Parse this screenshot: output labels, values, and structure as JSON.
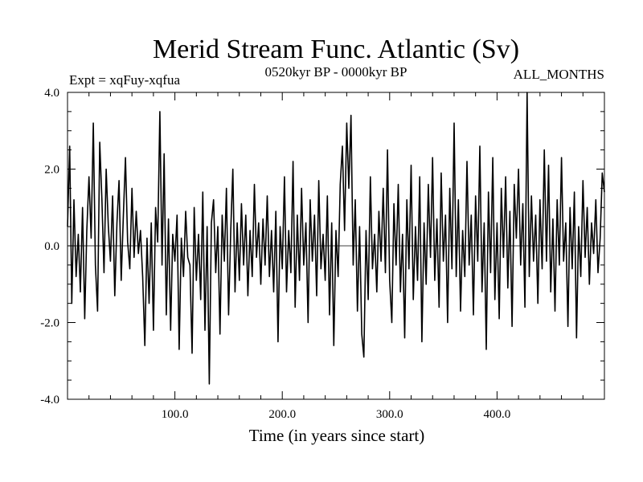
{
  "chart_data": {
    "type": "line",
    "title": "Merid Stream Func. Atlantic (Sv)",
    "subtitle_left": "Expt = xqFuy-xqfua",
    "subtitle_center": "0520kyr BP - 0000kyr BP",
    "subtitle_right": "ALL_MONTHS",
    "xlabel": "Time (in years since start)",
    "ylabel": "",
    "xlim": [
      0,
      500
    ],
    "ylim": [
      -4,
      4
    ],
    "xticks": [
      100,
      200,
      300,
      400
    ],
    "xtick_labels": [
      "100.0",
      "200.0",
      "300.0",
      "400.0"
    ],
    "yticks": [
      4,
      2,
      0,
      -2,
      -4
    ],
    "ytick_labels": [
      "4.0",
      "2.0",
      "0.0",
      "-2.0",
      "-4.0"
    ],
    "zero_line": true,
    "line_color": "#000000",
    "series": [
      {
        "name": "Merid Stream Func. Atlantic",
        "knots": [
          [
            0,
            0.5
          ],
          [
            2,
            2.6
          ],
          [
            4,
            -1.5
          ],
          [
            6,
            1.2
          ],
          [
            8,
            -0.8
          ],
          [
            10,
            0.3
          ],
          [
            12,
            -1.2
          ],
          [
            14,
            1.0
          ],
          [
            16,
            -1.9
          ],
          [
            18,
            0.4
          ],
          [
            20,
            1.8
          ],
          [
            22,
            0.2
          ],
          [
            24,
            3.2
          ],
          [
            26,
            -0.5
          ],
          [
            28,
            -1.7
          ],
          [
            30,
            2.7
          ],
          [
            32,
            1.2
          ],
          [
            34,
            -0.7
          ],
          [
            36,
            2.0
          ],
          [
            38,
            0.5
          ],
          [
            40,
            -0.4
          ],
          [
            42,
            1.3
          ],
          [
            44,
            -1.3
          ],
          [
            46,
            0.6
          ],
          [
            48,
            1.7
          ],
          [
            50,
            -0.9
          ],
          [
            52,
            0.8
          ],
          [
            54,
            2.3
          ],
          [
            56,
            0.1
          ],
          [
            58,
            -0.6
          ],
          [
            60,
            1.5
          ],
          [
            62,
            -0.3
          ],
          [
            64,
            0.9
          ],
          [
            66,
            -0.2
          ],
          [
            68,
            0.4
          ],
          [
            70,
            -0.8
          ],
          [
            72,
            -2.6
          ],
          [
            74,
            0.2
          ],
          [
            76,
            -1.5
          ],
          [
            78,
            0.6
          ],
          [
            80,
            -2.2
          ],
          [
            82,
            1.0
          ],
          [
            84,
            0.1
          ],
          [
            86,
            3.5
          ],
          [
            88,
            -0.5
          ],
          [
            90,
            2.4
          ],
          [
            92,
            -1.8
          ],
          [
            94,
            0.7
          ],
          [
            96,
            -2.2
          ],
          [
            98,
            0.3
          ],
          [
            100,
            -0.4
          ],
          [
            102,
            0.8
          ],
          [
            104,
            -2.7
          ],
          [
            106,
            0.2
          ],
          [
            108,
            -0.8
          ],
          [
            110,
            0.9
          ],
          [
            112,
            -0.3
          ],
          [
            114,
            -0.5
          ],
          [
            116,
            -2.8
          ],
          [
            118,
            1.0
          ],
          [
            120,
            -0.9
          ],
          [
            122,
            0.3
          ],
          [
            124,
            -1.4
          ],
          [
            126,
            1.4
          ],
          [
            128,
            -2.2
          ],
          [
            130,
            0.5
          ],
          [
            132,
            -3.6
          ],
          [
            134,
            0.6
          ],
          [
            136,
            1.2
          ],
          [
            138,
            -0.7
          ],
          [
            140,
            0.5
          ],
          [
            142,
            -2.3
          ],
          [
            144,
            0.8
          ],
          [
            146,
            -0.4
          ],
          [
            148,
            1.5
          ],
          [
            150,
            -1.8
          ],
          [
            152,
            0.4
          ],
          [
            154,
            2.0
          ],
          [
            156,
            -1.2
          ],
          [
            158,
            0.6
          ],
          [
            160,
            -0.9
          ],
          [
            162,
            1.1
          ],
          [
            164,
            -0.5
          ],
          [
            166,
            0.8
          ],
          [
            168,
            -1.3
          ],
          [
            170,
            0.4
          ],
          [
            172,
            -0.8
          ],
          [
            174,
            1.6
          ],
          [
            176,
            -0.3
          ],
          [
            178,
            0.6
          ],
          [
            180,
            -1.0
          ],
          [
            182,
            0.7
          ],
          [
            184,
            -0.5
          ],
          [
            186,
            1.3
          ],
          [
            188,
            -0.8
          ],
          [
            190,
            0.4
          ],
          [
            192,
            -1.2
          ],
          [
            194,
            0.9
          ],
          [
            196,
            -2.5
          ],
          [
            198,
            0.5
          ],
          [
            200,
            -0.6
          ],
          [
            202,
            1.8
          ],
          [
            204,
            -1.2
          ],
          [
            206,
            0.4
          ],
          [
            208,
            -0.7
          ],
          [
            210,
            2.2
          ],
          [
            212,
            -1.6
          ],
          [
            214,
            0.8
          ],
          [
            216,
            -0.9
          ],
          [
            218,
            1.5
          ],
          [
            220,
            -0.5
          ],
          [
            222,
            0.6
          ],
          [
            224,
            -2.0
          ],
          [
            226,
            1.2
          ],
          [
            228,
            -0.4
          ],
          [
            230,
            0.8
          ],
          [
            232,
            -1.3
          ],
          [
            234,
            1.7
          ],
          [
            236,
            -0.6
          ],
          [
            238,
            0.3
          ],
          [
            240,
            -0.9
          ],
          [
            242,
            1.3
          ],
          [
            244,
            -1.8
          ],
          [
            246,
            0.6
          ],
          [
            248,
            -2.6
          ],
          [
            250,
            0.4
          ],
          [
            252,
            -0.8
          ],
          [
            254,
            1.6
          ],
          [
            256,
            2.6
          ],
          [
            258,
            0.4
          ],
          [
            260,
            3.2
          ],
          [
            262,
            1.5
          ],
          [
            264,
            3.4
          ],
          [
            266,
            -0.5
          ],
          [
            268,
            1.2
          ],
          [
            270,
            -1.7
          ],
          [
            272,
            0.5
          ],
          [
            274,
            -2.3
          ],
          [
            276,
            -2.9
          ],
          [
            278,
            0.4
          ],
          [
            280,
            -1.4
          ],
          [
            282,
            1.8
          ],
          [
            284,
            -0.6
          ],
          [
            286,
            0.3
          ],
          [
            288,
            -1.2
          ],
          [
            290,
            0.9
          ],
          [
            292,
            -0.4
          ],
          [
            294,
            1.5
          ],
          [
            296,
            -0.7
          ],
          [
            298,
            2.5
          ],
          [
            300,
            -0.9
          ],
          [
            302,
            -2.0
          ],
          [
            304,
            1.1
          ],
          [
            306,
            -0.5
          ],
          [
            308,
            1.6
          ],
          [
            310,
            -1.2
          ],
          [
            312,
            0.3
          ],
          [
            314,
            -2.4
          ],
          [
            316,
            1.2
          ],
          [
            318,
            -0.6
          ],
          [
            320,
            2.1
          ],
          [
            322,
            -1.4
          ],
          [
            324,
            0.5
          ],
          [
            326,
            -0.9
          ],
          [
            328,
            1.8
          ],
          [
            330,
            -2.5
          ],
          [
            332,
            0.6
          ],
          [
            334,
            -1.0
          ],
          [
            336,
            1.6
          ],
          [
            338,
            -0.3
          ],
          [
            340,
            2.3
          ],
          [
            342,
            -0.9
          ],
          [
            344,
            0.7
          ],
          [
            346,
            -1.6
          ],
          [
            348,
            1.9
          ],
          [
            350,
            -0.4
          ],
          [
            352,
            0.8
          ],
          [
            354,
            -2.0
          ],
          [
            356,
            1.5
          ],
          [
            358,
            -0.6
          ],
          [
            360,
            3.2
          ],
          [
            362,
            -0.8
          ],
          [
            364,
            1.2
          ],
          [
            366,
            -1.7
          ],
          [
            368,
            0.4
          ],
          [
            370,
            -0.8
          ],
          [
            372,
            2.2
          ],
          [
            374,
            -0.5
          ],
          [
            376,
            0.8
          ],
          [
            378,
            -1.8
          ],
          [
            380,
            1.3
          ],
          [
            382,
            -0.4
          ],
          [
            384,
            2.6
          ],
          [
            386,
            -1.2
          ],
          [
            388,
            0.6
          ],
          [
            390,
            -2.7
          ],
          [
            392,
            1.4
          ],
          [
            394,
            -0.7
          ],
          [
            396,
            2.3
          ],
          [
            398,
            -1.4
          ],
          [
            400,
            0.6
          ],
          [
            402,
            -1.9
          ],
          [
            404,
            1.5
          ],
          [
            406,
            -0.3
          ],
          [
            408,
            1.8
          ],
          [
            410,
            -1.1
          ],
          [
            412,
            0.9
          ],
          [
            414,
            -2.1
          ],
          [
            416,
            1.6
          ],
          [
            418,
            0.2
          ],
          [
            420,
            2.0
          ],
          [
            422,
            -0.5
          ],
          [
            424,
            1.1
          ],
          [
            426,
            -1.6
          ],
          [
            428,
            4.0
          ],
          [
            430,
            -0.8
          ],
          [
            432,
            1.3
          ],
          [
            434,
            -0.4
          ],
          [
            436,
            0.8
          ],
          [
            438,
            -1.5
          ],
          [
            440,
            1.2
          ],
          [
            442,
            -0.6
          ],
          [
            444,
            2.5
          ],
          [
            446,
            -0.4
          ],
          [
            448,
            2.1
          ],
          [
            450,
            -1.2
          ],
          [
            452,
            0.7
          ],
          [
            454,
            -1.7
          ],
          [
            456,
            1.2
          ],
          [
            458,
            -0.5
          ],
          [
            460,
            2.3
          ],
          [
            462,
            -0.4
          ],
          [
            464,
            0.6
          ],
          [
            466,
            -2.1
          ],
          [
            468,
            1.0
          ],
          [
            470,
            -0.6
          ],
          [
            472,
            1.4
          ],
          [
            474,
            -2.4
          ],
          [
            476,
            0.5
          ],
          [
            478,
            -0.8
          ],
          [
            480,
            1.7
          ],
          [
            482,
            -0.3
          ],
          [
            484,
            1.0
          ],
          [
            486,
            -1.0
          ],
          [
            488,
            0.6
          ],
          [
            490,
            -0.2
          ],
          [
            492,
            1.2
          ],
          [
            494,
            -0.7
          ],
          [
            496,
            0.2
          ],
          [
            498,
            1.9
          ],
          [
            500,
            1.4
          ]
        ]
      }
    ]
  }
}
